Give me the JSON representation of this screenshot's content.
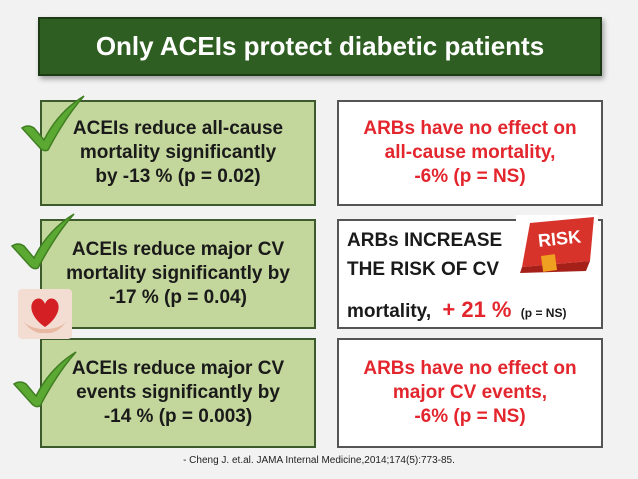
{
  "title": "Only ACEIs protect diabetic patients",
  "acei": [
    {
      "lines": [
        "ACEIs reduce all-cause",
        "mortality significantly",
        "by -13 % (p = 0.02)"
      ]
    },
    {
      "lines": [
        "ACEIs reduce major CV",
        "mortality significantly by",
        "-17 % (p = 0.04)"
      ]
    },
    {
      "lines": [
        "ACEIs reduce major CV",
        "events significantly by",
        "-14 % (p = 0.003)"
      ]
    }
  ],
  "arb_no_effect_mortality": {
    "lines": [
      "ARBs have no effect on",
      "all-cause mortality,",
      "-6% (p = NS)"
    ]
  },
  "arb_increase": {
    "line1": "ARBs INCREASE",
    "line2": "THE RISK OF CV",
    "line3": "mortality,",
    "value": "+ 21 %",
    "p": "(p = NS)"
  },
  "arb_no_effect_events": {
    "lines": [
      "ARBs have no effect on",
      "major CV events,",
      "-6% (p = NS)"
    ]
  },
  "risk_sign_text": "RISK",
  "citation": "- Cheng J. et.al. JAMA Internal Medicine,2014;174(5):773-85.",
  "colors": {
    "title_bg": "#2f5e22",
    "acei_box": "#c3d69b",
    "check": "#5ba832",
    "arb_text": "#e3262d"
  },
  "icons": [
    "checkmark-icon",
    "heart-in-hands-icon",
    "risk-sign-icon"
  ]
}
